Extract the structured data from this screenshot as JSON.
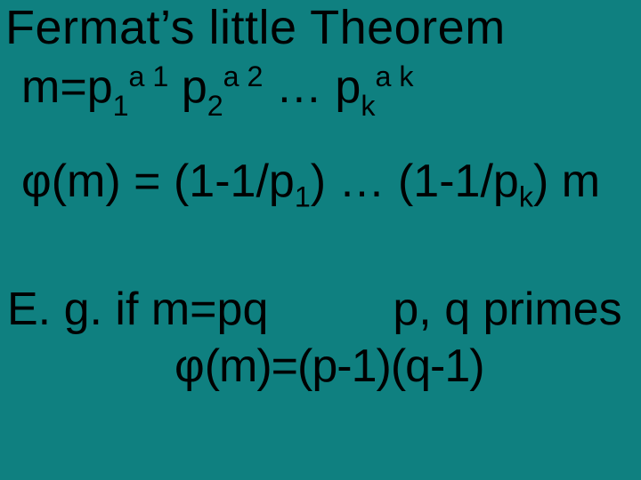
{
  "colors": {
    "background": "#0f8080",
    "text": "#000000"
  },
  "typography": {
    "family": "Segoe UI Light",
    "title_fontsize_pt": 40,
    "body_fontsize_pt": 39,
    "weight": 300
  },
  "title": "Fermat’s little Theorem",
  "line1": {
    "lhs": "m=",
    "p": "p",
    "sub1": "1",
    "sup1": "a 1",
    "sub2": "2",
    "sup2": "a 2",
    "dots": " … ",
    "subk": "k",
    "supk": "a k"
  },
  "line2": {
    "phi": "φ(",
    "m": "m) ",
    "eq": "= ",
    "open": "(1-1/",
    "p": "p",
    "sub1": "1",
    "close": ") ",
    "dots": "… ",
    "subk": "k",
    "end": ") m"
  },
  "line3": {
    "pre": "E. g. if m=pq",
    "post": "p, q primes"
  },
  "line4": {
    "phi": "φ",
    "rest": "(m)=(p-1)(q-1)"
  }
}
